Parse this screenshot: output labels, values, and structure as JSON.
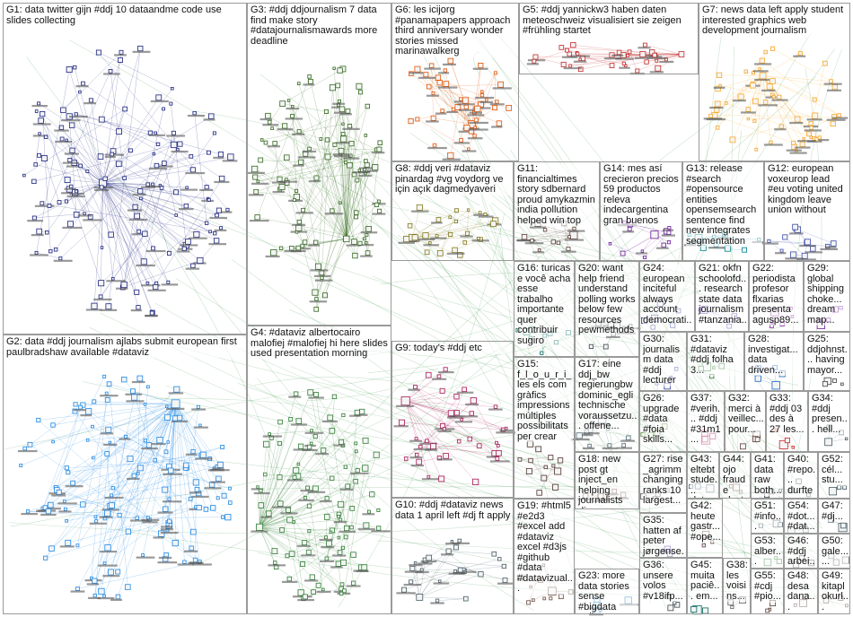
{
  "graph": {
    "groups": [
      {
        "id": "G1",
        "label": "G1: data twitter gijn #ddj 10 dataandme code use slides collecting",
        "color": "#1a237e"
      },
      {
        "id": "G2",
        "label": "G2: data #ddj journalism ajlabs submit european first paulbradshaw available #dataviz",
        "color": "#1e88e5"
      },
      {
        "id": "G3",
        "label": "G3: #ddj ddjournalism 7 data find make story #datajournalismawards more deadline",
        "color": "#33691e"
      },
      {
        "id": "G4",
        "label": "G4: #dataviz albertocairo malofiej #malofiej hi here slides used presentation morning",
        "color": "#2e7d32"
      },
      {
        "id": "G5",
        "label": "G5: #ddj yannickw3 haben daten meteoschweiz visualisiert sie zeigen #frühling startet",
        "color": "#c62828"
      },
      {
        "id": "G6",
        "label": "G6: les icijorg #panamapapers approach third anniversary wonder stories missed marinawalkerg",
        "color": "#e65100"
      },
      {
        "id": "G7",
        "label": "G7: news data left apply student interested graphics web development journalism",
        "color": "#f9a825"
      },
      {
        "id": "G8",
        "label": "G8: #ddj veri #dataviz pinardag #vg voydorg ve için açık dagmedyaveri",
        "color": "#827717"
      },
      {
        "id": "G9",
        "label": "G9: today's #ddj etc",
        "color": "#ad1457"
      },
      {
        "id": "G10",
        "label": "G10: #ddj #dataviz news data 1 april left #dj ft apply",
        "color": "#455a64"
      },
      {
        "id": "G11",
        "label": "G11: financialtimes story sdbernard proud amykazmin india pollution helped win top",
        "color": "#5d4037"
      },
      {
        "id": "G12",
        "label": "G12: european voxeurop lead #eu voting united kingdom leave union without",
        "color": "#3949ab"
      },
      {
        "id": "G13",
        "label": "G13: release #search #opensource entities opensemsearch sentence find new integrates segmentation",
        "color": "#00838f"
      },
      {
        "id": "G14",
        "label": "G14: mes así crecieron precios 59 productos releva indecargentina gran buenos",
        "color": "#6a1b9a"
      },
      {
        "id": "G15",
        "label": "G15: f_l_o_u_r_i_ les els com gràfics impressions múltiples possibilitats per crear",
        "color": "#4e342e"
      },
      {
        "id": "G16",
        "label": "G16: turicas e você acha esse trabalho importante quer contribuir sugiro",
        "color": "#00695c"
      },
      {
        "id": "G17",
        "label": "G17: eine ddj_bw regierungbw dominic_egli technische voraussetzu... offene...",
        "color": "#546e7a"
      },
      {
        "id": "G18",
        "label": "G18: new post gt inject_en helping journalists discover angles story...",
        "color": "#795548"
      },
      {
        "id": "G19",
        "label": "G19: #html5 #e2d3 #excel add #dataviz excel #d3js #github #data #datavizual...",
        "color": "#6d4c41"
      },
      {
        "id": "G20",
        "label": "G20: want help friend understand polling works below few resources pewmethods",
        "color": "#37474f"
      },
      {
        "id": "G21",
        "label": "G21: okfn schoolofd... research state data journalism #tanzania...",
        "color": "#5e35b1"
      },
      {
        "id": "G22",
        "label": "G22: periodista profesor flxarias presenta agusp89...",
        "color": "#8e24aa"
      },
      {
        "id": "G23",
        "label": "G23: more data stories sense #bigdata online...",
        "color": "#0277bd"
      },
      {
        "id": "G24",
        "label": "G24: european inciteful always account democrati...",
        "color": "#283593"
      },
      {
        "id": "G25",
        "label": "G25: ddjohnst... having mayor...",
        "color": "#424242"
      },
      {
        "id": "G26",
        "label": "G26: upgrade #data #foia skills...",
        "color": "#558b2f"
      },
      {
        "id": "G27",
        "label": "G27: rise _agrimm changing ranks 10 largest...",
        "color": "#616161"
      },
      {
        "id": "G28",
        "label": "G28: investigat... data driven...",
        "color": "#1565c0"
      },
      {
        "id": "G29",
        "label": "G29: global shipping choke... dream map...",
        "color": "#6a1b9a"
      },
      {
        "id": "G30",
        "label": "G30: journalism data #ddj lecturer",
        "color": "#303f9f"
      },
      {
        "id": "G31",
        "label": "G31: #dataviz #ddj folha 3...",
        "color": "#2e7d32"
      },
      {
        "id": "G32",
        "label": "G32: merci à veillec... pour...",
        "color": "#5d4037"
      },
      {
        "id": "G33",
        "label": "G33: #ddj 03 des à 27 les...",
        "color": "#c62828"
      },
      {
        "id": "G34",
        "label": "G34: #ddj presen... hell...",
        "color": "#455a64"
      },
      {
        "id": "G35",
        "label": "G35: hatten af peter jørgense...",
        "color": "#4527a0"
      },
      {
        "id": "G36",
        "label": "G36: unsere volos #v18ifp...",
        "color": "#37474f"
      },
      {
        "id": "G37",
        "label": "G37: #verih... #ddj #31m1...",
        "color": "#ad1457"
      },
      {
        "id": "G38",
        "label": "G38: les voisins...",
        "color": "#616161"
      },
      {
        "id": "G39",
        "label": "G39: ...",
        "color": "#424242"
      },
      {
        "id": "G40",
        "label": "G40: #repo... durften #bl...",
        "color": "#455a64"
      },
      {
        "id": "G41",
        "label": "G41: data raw both...",
        "color": "#37474f"
      },
      {
        "id": "G42",
        "label": "G42: heute gastr... #ope...",
        "color": "#5d4037"
      },
      {
        "id": "G43",
        "label": "G43: eltebt stude... data...",
        "color": "#546e7a"
      },
      {
        "id": "G44",
        "label": "G44: ojo fraude elect...",
        "color": "#6d4c41"
      },
      {
        "id": "G45",
        "label": "G45: muita paciê... em...",
        "color": "#00695c"
      },
      {
        "id": "G46",
        "label": "G46: #ddj arbei... #dat...",
        "color": "#424242"
      },
      {
        "id": "G47",
        "label": "G47: #dj...",
        "color": "#455a64"
      },
      {
        "id": "G48",
        "label": "G48: desa dana...",
        "color": "#5d4037"
      },
      {
        "id": "G49",
        "label": "G49: kitapl okurl...",
        "color": "#4e342e"
      },
      {
        "id": "G50",
        "label": "G50: gale... ...",
        "color": "#616161"
      },
      {
        "id": "G51",
        "label": "G51: #info... #ddj...",
        "color": "#37474f"
      },
      {
        "id": "G52",
        "label": "G52: cél... stu...",
        "color": "#455a64"
      },
      {
        "id": "G53",
        "label": "G53: alber... cairo...",
        "color": "#2e7d32"
      },
      {
        "id": "G54",
        "label": "G54: #dot... #dat...",
        "color": "#455a64"
      },
      {
        "id": "G55",
        "label": "G55: #cdj #pio...",
        "color": "#5d4037"
      }
    ]
  }
}
